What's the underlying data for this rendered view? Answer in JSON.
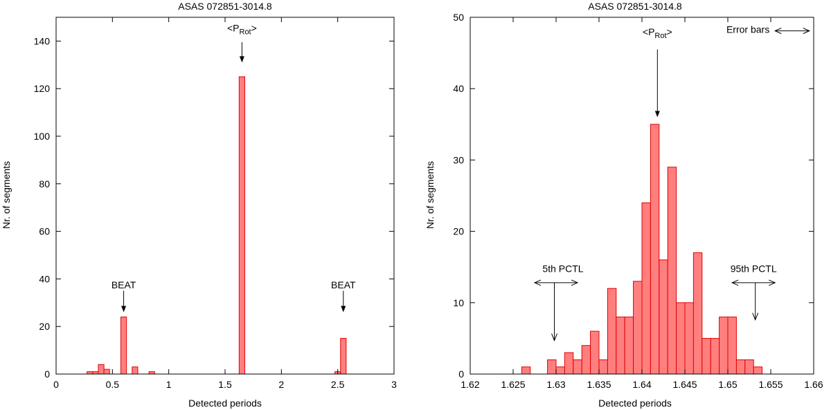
{
  "chart_data": [
    {
      "type": "bar",
      "title": "ASAS 072851-3014.8",
      "xlabel": "Detected periods",
      "ylabel": "Nr. of segments",
      "xlim": [
        0,
        3
      ],
      "ylim": [
        0,
        150
      ],
      "xticks": [
        0,
        0.5,
        1,
        1.5,
        2,
        2.5,
        3
      ],
      "xtick_labels": [
        "0",
        "0.5",
        "1",
        "1.5",
        "2",
        "2.5",
        "3"
      ],
      "yticks": [
        0,
        20,
        40,
        60,
        80,
        100,
        120,
        140
      ],
      "ytick_labels": [
        "0",
        "20",
        "40",
        "60",
        "80",
        "100",
        "120",
        "140"
      ],
      "bin_width": 0.05,
      "bins": [
        {
          "x": 0.3,
          "value": 1
        },
        {
          "x": 0.35,
          "value": 1
        },
        {
          "x": 0.4,
          "value": 4
        },
        {
          "x": 0.45,
          "value": 2
        },
        {
          "x": 0.6,
          "value": 24
        },
        {
          "x": 0.7,
          "value": 3
        },
        {
          "x": 0.85,
          "value": 1
        },
        {
          "x": 1.65,
          "value": 125
        },
        {
          "x": 2.5,
          "value": 1
        },
        {
          "x": 2.55,
          "value": 15
        }
      ],
      "annotations": [
        {
          "text": "BEAT",
          "x": 0.6,
          "y_text": 36,
          "y_tail": 35,
          "y_head": 26,
          "kind": "down"
        },
        {
          "text": "BEAT",
          "x": 2.55,
          "y_text": 36,
          "y_tail": 35,
          "y_head": 26,
          "kind": "down"
        },
        {
          "text": "<P",
          "sub": "Rot",
          "text_after": ">",
          "x": 1.65,
          "y_text": 144,
          "y_tail": 139.5,
          "y_head": 131,
          "kind": "down"
        }
      ]
    },
    {
      "type": "bar",
      "title": "ASAS 072851-3014.8",
      "xlabel": "Detected periods",
      "ylabel": "Nr. of segments",
      "xlim": [
        1.62,
        1.66
      ],
      "ylim": [
        0,
        50
      ],
      "xticks": [
        1.62,
        1.625,
        1.63,
        1.635,
        1.64,
        1.645,
        1.65,
        1.655,
        1.66
      ],
      "xtick_labels": [
        "1.62",
        "1.625",
        "1.63",
        "1.635",
        "1.64",
        "1.645",
        "1.65",
        "1.655",
        "1.66"
      ],
      "yticks": [
        0,
        10,
        20,
        30,
        40,
        50
      ],
      "ytick_labels": [
        "0",
        "10",
        "20",
        "30",
        "40",
        "50"
      ],
      "bin_width": 0.001,
      "bins": [
        {
          "x": 1.6265,
          "value": 1
        },
        {
          "x": 1.6295,
          "value": 2
        },
        {
          "x": 1.6305,
          "value": 1
        },
        {
          "x": 1.6315,
          "value": 3
        },
        {
          "x": 1.6325,
          "value": 2
        },
        {
          "x": 1.6335,
          "value": 4
        },
        {
          "x": 1.6345,
          "value": 6
        },
        {
          "x": 1.6355,
          "value": 2
        },
        {
          "x": 1.6365,
          "value": 12
        },
        {
          "x": 1.6375,
          "value": 8
        },
        {
          "x": 1.6385,
          "value": 8
        },
        {
          "x": 1.6395,
          "value": 13
        },
        {
          "x": 1.6405,
          "value": 24
        },
        {
          "x": 1.6415,
          "value": 35
        },
        {
          "x": 1.6425,
          "value": 16
        },
        {
          "x": 1.6435,
          "value": 29
        },
        {
          "x": 1.6445,
          "value": 10
        },
        {
          "x": 1.6455,
          "value": 10
        },
        {
          "x": 1.6465,
          "value": 17
        },
        {
          "x": 1.6475,
          "value": 5
        },
        {
          "x": 1.6485,
          "value": 5
        },
        {
          "x": 1.6495,
          "value": 8
        },
        {
          "x": 1.6505,
          "value": 8
        },
        {
          "x": 1.6515,
          "value": 2
        },
        {
          "x": 1.6525,
          "value": 2
        },
        {
          "x": 1.6535,
          "value": 1
        }
      ],
      "annotations": [
        {
          "text": "<P",
          "sub": "Rot",
          "text_after": ">",
          "x": 1.6418,
          "y_text": 47.5,
          "y_tail": 45.5,
          "y_head": 36,
          "kind": "down"
        },
        {
          "text": "5th PCTL",
          "x": 1.6298,
          "y_text": 14.3,
          "y_bar": 12.8,
          "x_left": 1.6275,
          "x_right": 1.6325,
          "y_head": 4.7,
          "kind": "pctl"
        },
        {
          "text": "95th PCTL",
          "x": 1.6532,
          "y_text": 14.3,
          "y_bar": 12.8,
          "x_left": 1.6505,
          "x_right": 1.6555,
          "y_head": 7.6,
          "kind": "pctl"
        },
        {
          "text": "Error bars",
          "x": 1.6535,
          "y_text": 47.8,
          "x_left": 1.6555,
          "x_right": 1.6595,
          "y_bar": 48.1,
          "kind": "errorbar"
        }
      ]
    }
  ]
}
